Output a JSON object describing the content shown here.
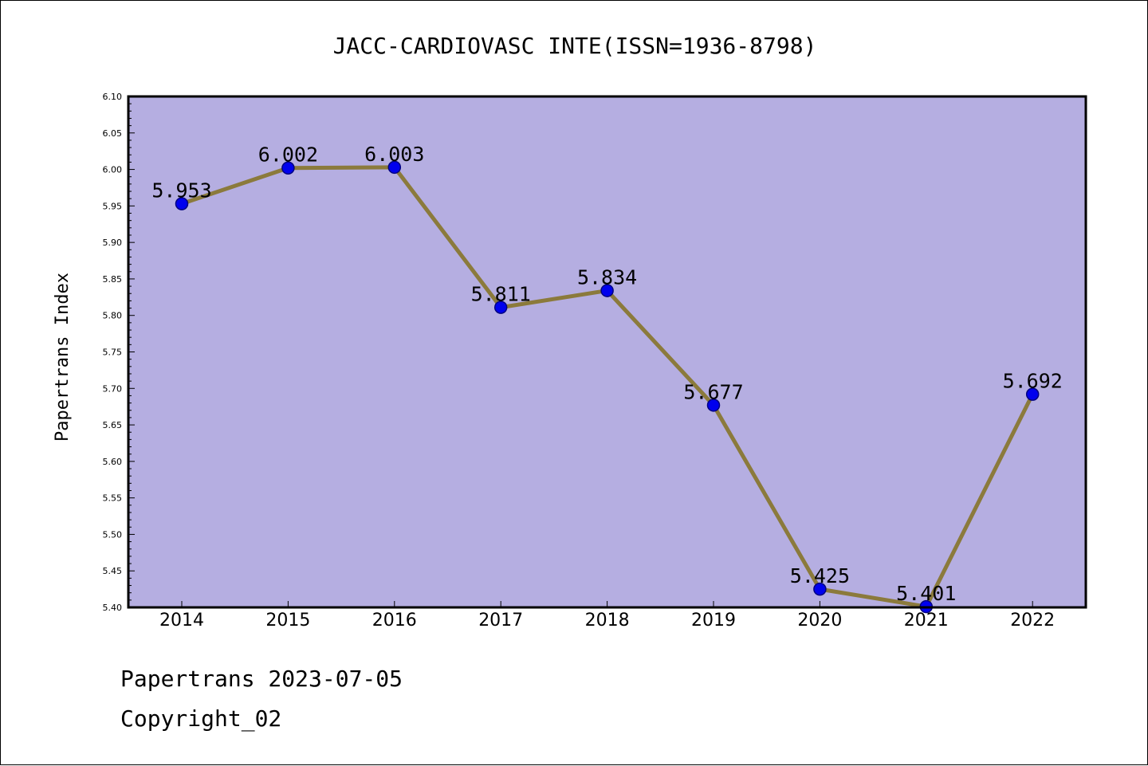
{
  "chart_data": {
    "type": "line",
    "title": "JACC-CARDIOVASC INTE(ISSN=1936-8798)",
    "xlabel": "",
    "ylabel": "Papertrans Index",
    "categories": [
      "2014",
      "2015",
      "2016",
      "2017",
      "2018",
      "2019",
      "2020",
      "2021",
      "2022"
    ],
    "values": [
      5.953,
      6.002,
      6.003,
      5.811,
      5.834,
      5.677,
      5.425,
      5.401,
      5.692
    ],
    "data_labels": [
      "5.953",
      "6.002",
      "6.003",
      "5.811",
      "5.834",
      "5.677",
      "5.425",
      "5.401",
      "5.692"
    ],
    "ylim": [
      5.4,
      6.1
    ],
    "yticks": [
      "5.40",
      "5.45",
      "5.50",
      "5.55",
      "5.60",
      "5.65",
      "5.70",
      "5.75",
      "5.80",
      "5.85",
      "5.90",
      "5.95",
      "6.00",
      "6.05",
      "6.10"
    ],
    "grid": false,
    "colors": {
      "plot_background": "#b5aee1",
      "line": "#8b7a3c",
      "marker": "#0000ee",
      "marker_edge": "#000080"
    }
  },
  "footer": {
    "date_line": "Papertrans 2023-07-05",
    "copyright_line": "Copyright_02"
  }
}
